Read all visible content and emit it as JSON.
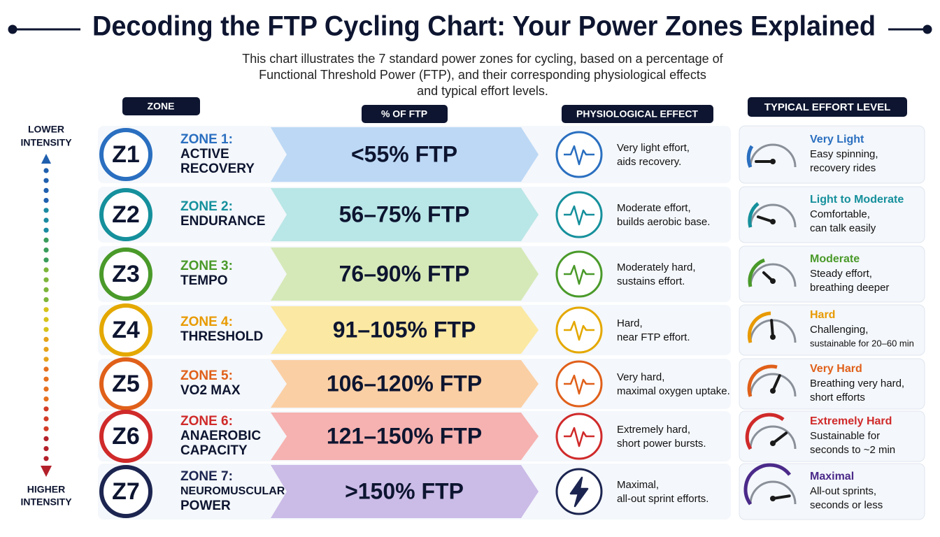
{
  "title": "Decoding the FTP Cycling Chart: Your Power Zones Explained",
  "subtitle": [
    "This chart illustrates the 7 standard power zones for cycling, based on a percentage of",
    "Functional Threshold Power (FTP), and their corresponding physiological effects",
    "and typical effort levels."
  ],
  "headers": {
    "zone": "ZONE",
    "percent": "% OF FTP",
    "effect": "PHYSIOLOGICAL EFFECT",
    "effort": "TYPICAL EFFORT LEVEL"
  },
  "intensity": {
    "lower": [
      "LOWER",
      "INTENSITY"
    ],
    "higher": [
      "HIGHER",
      "INTENSITY"
    ]
  },
  "zones": [
    {
      "badge": "Z1",
      "label": "ZONE 1:",
      "name": [
        "ACTIVE",
        "RECOVERY"
      ],
      "range": "<55% FTP",
      "effect": [
        "Very light effort,",
        "aids recovery."
      ],
      "level": "Very Light",
      "description": [
        "Easy spinning,",
        "recovery rides"
      ]
    },
    {
      "badge": "Z2",
      "label": "ZONE 2:",
      "name": [
        "ENDURANCE"
      ],
      "range": "56–75% FTP",
      "effect": [
        "Moderate effort,",
        "builds aerobic base."
      ],
      "level": "Light to Moderate",
      "description": [
        "Comfortable,",
        "can talk easily"
      ]
    },
    {
      "badge": "Z3",
      "label": "ZONE 3:",
      "name": [
        "TEMPO"
      ],
      "range": "76–90% FTP",
      "effect": [
        "Moderately hard,",
        "sustains effort."
      ],
      "level": "Moderate",
      "description": [
        "Steady effort,",
        "breathing deeper"
      ]
    },
    {
      "badge": "Z4",
      "label": "ZONE 4:",
      "name": [
        "THRESHOLD"
      ],
      "range": "91–105% FTP",
      "effect": [
        "Hard,",
        "near FTP effort."
      ],
      "level": "Hard",
      "description": [
        "Challenging,",
        "sustainable for 20–60 min"
      ]
    },
    {
      "badge": "Z5",
      "label": "ZONE 5:",
      "name": [
        "VO2 MAX"
      ],
      "range": "106–120% FTP",
      "effect": [
        "Very hard,",
        "maximal oxygen uptake."
      ],
      "level": "Very Hard",
      "description": [
        "Breathing very hard,",
        "short efforts"
      ]
    },
    {
      "badge": "Z6",
      "label": "ZONE 6:",
      "name": [
        "ANAEROBIC",
        "CAPACITY"
      ],
      "range": "121–150% FTP",
      "effect": [
        "Extremely hard,",
        "short power bursts."
      ],
      "level": "Extremely Hard",
      "description": [
        "Sustainable for",
        "seconds to ~2 min"
      ]
    },
    {
      "badge": "Z7",
      "label": "ZONE 7:",
      "name": [
        "NEUROMUSCULAR",
        "POWER"
      ],
      "range": ">150% FTP",
      "effect": [
        "Maximal,",
        "all-out sprint efforts."
      ],
      "level": "Maximal",
      "description": [
        "All-out sprints,",
        "seconds or less"
      ]
    }
  ]
}
